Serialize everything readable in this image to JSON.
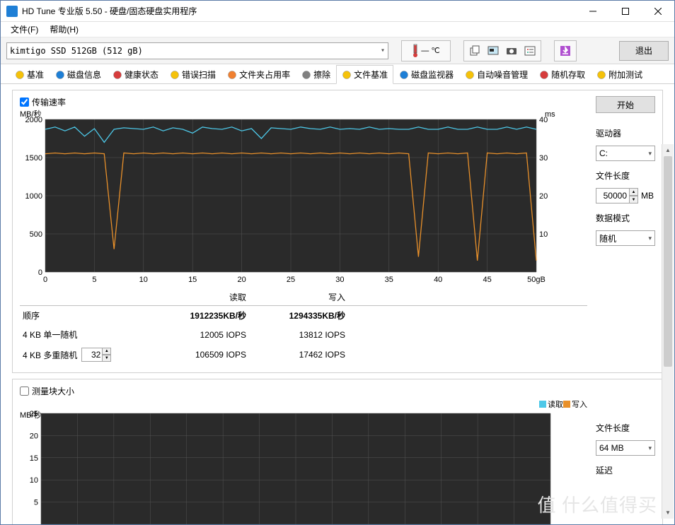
{
  "window": {
    "title": "HD Tune 专业版 5.50 - 硬盘/固态硬盘实用程序"
  },
  "menu": {
    "file": "文件(F)",
    "help": "帮助(H)"
  },
  "toolbar": {
    "drive": "kimtigo SSD 512GB (512 gB)",
    "temp": "— ℃",
    "exit": "退出"
  },
  "tabs": [
    {
      "label": "基准",
      "color": "#f5c20a"
    },
    {
      "label": "磁盘信息",
      "color": "#1e7fd6"
    },
    {
      "label": "健康状态",
      "color": "#d63c3c"
    },
    {
      "label": "错误扫描",
      "color": "#f5c20a"
    },
    {
      "label": "文件夹占用率",
      "color": "#f08030"
    },
    {
      "label": "擦除",
      "color": "#808080"
    },
    {
      "label": "文件基准",
      "color": "#f5c20a",
      "active": true
    },
    {
      "label": "磁盘监视器",
      "color": "#1e7fd6"
    },
    {
      "label": "自动噪音管理",
      "color": "#f5c20a"
    },
    {
      "label": "随机存取",
      "color": "#d63c3c"
    },
    {
      "label": "附加测试",
      "color": "#f5c20a"
    }
  ],
  "chart1": {
    "checkbox_label": "传输速率",
    "y_unit_left": "MB/秒",
    "y_unit_right": "ms",
    "y_left_max": 2000,
    "y_left_step": 500,
    "y_right_max": 40,
    "y_right_step": 10,
    "x_max": 50,
    "x_step": 5,
    "x_unit": "gB",
    "bg": "#2a2a2a",
    "grid": "#555555",
    "read_color": "#4dc8e8",
    "write_color": "#e8902a",
    "read_series": [
      1870,
      1900,
      1850,
      1900,
      1780,
      1880,
      1700,
      1870,
      1890,
      1880,
      1870,
      1900,
      1850,
      1890,
      1870,
      1820,
      1900,
      1880,
      1870,
      1900,
      1850,
      1880,
      1750,
      1890,
      1880,
      1870,
      1900,
      1880,
      1870,
      1900,
      1870,
      1880,
      1870,
      1900,
      1870,
      1880,
      1870,
      1870,
      1900,
      1870,
      1870,
      1900,
      1870,
      1870,
      1900,
      1870,
      1870,
      1900,
      1870,
      1900,
      1870
    ],
    "write_series": [
      1550,
      1560,
      1550,
      1560,
      1550,
      1560,
      1550,
      300,
      1560,
      1550,
      1560,
      1550,
      1560,
      1550,
      1560,
      1550,
      1560,
      1550,
      1560,
      1550,
      1560,
      1550,
      1560,
      1550,
      1560,
      1550,
      1560,
      1550,
      1560,
      1550,
      1560,
      1550,
      1560,
      1550,
      1560,
      1550,
      1560,
      1550,
      200,
      1560,
      1550,
      1560,
      1550,
      1560,
      150,
      1560,
      1550,
      1560,
      1550,
      1560,
      150
    ]
  },
  "results": {
    "header_read": "读取",
    "header_write": "写入",
    "rows": [
      {
        "name": "顺序",
        "read": "1912235KB/秒",
        "write": "1294335KB/秒",
        "bold": true
      },
      {
        "name": "4 KB 单一随机",
        "read": "12005 IOPS",
        "write": "13812 IOPS"
      },
      {
        "name": "4 KB 多重随机",
        "read": "106509 IOPS",
        "write": "17462 IOPS",
        "spinner": "32"
      }
    ]
  },
  "side1": {
    "start": "开始",
    "drive_lbl": "驱动器",
    "drive_val": "C:",
    "filelen_lbl": "文件长度",
    "filelen_val": "50000",
    "filelen_unit": "MB",
    "datamode_lbl": "数据模式",
    "datamode_val": "随机"
  },
  "chart2": {
    "checkbox_label": "测量块大小",
    "y_unit_left": "MB/秒",
    "y_left_max": 25,
    "y_left_step": 5,
    "bg": "#2a2a2a",
    "grid": "#555555",
    "legend_read": "读取",
    "legend_write": "写入",
    "read_color": "#4dc8e8",
    "write_color": "#e8902a"
  },
  "side2": {
    "filelen_lbl": "文件长度",
    "filelen_val": "64 MB",
    "delay_lbl": "延迟"
  },
  "watermark": "值 什么值得买"
}
